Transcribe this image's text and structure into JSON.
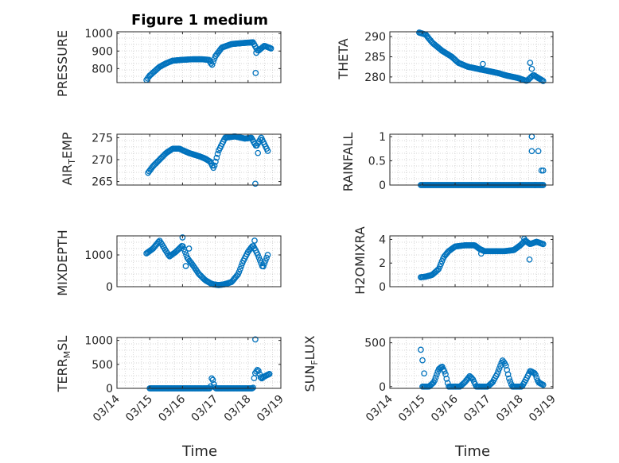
{
  "chart_data": [
    {
      "type": "scatter",
      "title": "Figure 1 medium",
      "ylabel": "PRESSURE",
      "ylim": [
        720,
        1010
      ],
      "yticks": [
        "800",
        "900",
        "1000"
      ],
      "xlim": [
        "03/14",
        "03/19"
      ],
      "grid": true,
      "keypoints": [
        [
          14.9,
          735
        ],
        [
          15.0,
          760
        ],
        [
          15.15,
          785
        ],
        [
          15.3,
          810
        ],
        [
          15.5,
          830
        ],
        [
          15.7,
          845
        ],
        [
          16.0,
          850
        ],
        [
          16.3,
          853
        ],
        [
          16.6,
          853
        ],
        [
          16.8,
          850
        ],
        [
          16.9,
          820
        ],
        [
          17.0,
          870
        ],
        [
          17.2,
          920
        ],
        [
          17.5,
          940
        ],
        [
          17.8,
          945
        ],
        [
          18.0,
          948
        ],
        [
          18.15,
          950
        ],
        [
          18.3,
          900
        ],
        [
          18.5,
          930
        ],
        [
          18.7,
          915
        ]
      ],
      "extra_points": [
        [
          18.23,
          775
        ],
        [
          18.25,
          890
        ]
      ]
    },
    {
      "type": "scatter",
      "ylabel": "THETA",
      "ylim": [
        278.6,
        291.2
      ],
      "yticks": [
        "280",
        "285",
        "290"
      ],
      "xlim": [
        "03/14",
        "03/19"
      ],
      "grid": true,
      "keypoints": [
        [
          14.9,
          291
        ],
        [
          15.1,
          290.5
        ],
        [
          15.3,
          288.5
        ],
        [
          15.6,
          286.5
        ],
        [
          15.9,
          285
        ],
        [
          16.1,
          283.5
        ],
        [
          16.4,
          282.5
        ],
        [
          16.7,
          282
        ],
        [
          17.0,
          281.5
        ],
        [
          17.3,
          281
        ],
        [
          17.6,
          280.3
        ],
        [
          17.9,
          279.8
        ],
        [
          18.2,
          279
        ],
        [
          18.4,
          280.5
        ],
        [
          18.7,
          279
        ]
      ],
      "extra_points": [
        [
          16.85,
          283.2
        ],
        [
          18.3,
          283.5
        ],
        [
          18.35,
          282
        ]
      ]
    },
    {
      "type": "scatter",
      "ylabel": "AIR_TEMP",
      "ylim": [
        264.2,
        275.8
      ],
      "yticks": [
        "265",
        "270",
        "275"
      ],
      "xlim": [
        "03/14",
        "03/19"
      ],
      "grid": true,
      "keypoints": [
        [
          14.95,
          267
        ],
        [
          15.1,
          268.5
        ],
        [
          15.3,
          270
        ],
        [
          15.5,
          271.5
        ],
        [
          15.7,
          272.5
        ],
        [
          15.9,
          272.5
        ],
        [
          16.2,
          271.5
        ],
        [
          16.5,
          270.8
        ],
        [
          16.7,
          270.2
        ],
        [
          16.85,
          269.5
        ],
        [
          16.95,
          268
        ],
        [
          17.1,
          272
        ],
        [
          17.3,
          275
        ],
        [
          17.6,
          275.3
        ],
        [
          17.9,
          274.8
        ],
        [
          18.1,
          275
        ],
        [
          18.25,
          273
        ],
        [
          18.4,
          275
        ],
        [
          18.6,
          272
        ]
      ],
      "extra_points": [
        [
          18.22,
          264.5
        ],
        [
          18.3,
          271.5
        ]
      ]
    },
    {
      "type": "scatter",
      "ylabel": "RAINFALL",
      "ylim": [
        0,
        1.05
      ],
      "yticks": [
        "0",
        "0.5",
        "1"
      ],
      "xlim": [
        "03/14",
        "03/19"
      ],
      "grid": true,
      "keypoints": [
        [
          14.95,
          0
        ],
        [
          18.7,
          0
        ]
      ],
      "extra_points": [
        [
          18.35,
          1
        ],
        [
          18.35,
          0.7
        ],
        [
          18.55,
          0.7
        ],
        [
          18.65,
          0.3
        ],
        [
          18.7,
          0.3
        ],
        [
          18.45,
          0
        ]
      ]
    },
    {
      "type": "scatter",
      "ylabel": "MIXDEPTH",
      "ylim": [
        0,
        1600
      ],
      "yticks": [
        "0",
        "1000"
      ],
      "xlim": [
        "03/14",
        "03/19"
      ],
      "grid": true,
      "keypoints": [
        [
          14.9,
          1050
        ],
        [
          15.1,
          1200
        ],
        [
          15.3,
          1450
        ],
        [
          15.45,
          1200
        ],
        [
          15.6,
          950
        ],
        [
          15.8,
          1100
        ],
        [
          16.0,
          1300
        ],
        [
          16.15,
          900
        ],
        [
          16.3,
          700
        ],
        [
          16.5,
          400
        ],
        [
          16.7,
          200
        ],
        [
          16.9,
          80
        ],
        [
          17.1,
          50
        ],
        [
          17.3,
          80
        ],
        [
          17.5,
          150
        ],
        [
          17.7,
          400
        ],
        [
          17.85,
          800
        ],
        [
          18.0,
          1100
        ],
        [
          18.15,
          1300
        ],
        [
          18.3,
          1000
        ],
        [
          18.45,
          600
        ],
        [
          18.6,
          1000
        ]
      ],
      "extra_points": [
        [
          16.0,
          1550
        ],
        [
          16.2,
          1200
        ],
        [
          16.1,
          650
        ],
        [
          18.2,
          1450
        ]
      ]
    },
    {
      "type": "scatter",
      "ylabel": "H2OMIXRA",
      "ylim": [
        0,
        4.3
      ],
      "yticks": [
        "0",
        "2",
        "4"
      ],
      "xlim": [
        "03/14",
        "03/19"
      ],
      "grid": true,
      "keypoints": [
        [
          14.95,
          0.8
        ],
        [
          15.1,
          0.85
        ],
        [
          15.3,
          1.0
        ],
        [
          15.5,
          1.5
        ],
        [
          15.65,
          2.5
        ],
        [
          15.8,
          3.0
        ],
        [
          16.0,
          3.4
        ],
        [
          16.3,
          3.5
        ],
        [
          16.6,
          3.5
        ],
        [
          16.75,
          3.2
        ],
        [
          16.9,
          3.0
        ],
        [
          17.2,
          3.0
        ],
        [
          17.5,
          3.0
        ],
        [
          17.8,
          3.1
        ],
        [
          18.0,
          3.5
        ],
        [
          18.15,
          3.9
        ],
        [
          18.3,
          3.6
        ],
        [
          18.5,
          3.8
        ],
        [
          18.7,
          3.6
        ]
      ],
      "extra_points": [
        [
          18.28,
          2.3
        ],
        [
          16.8,
          2.8
        ],
        [
          18.12,
          4.05
        ]
      ]
    },
    {
      "type": "scatter",
      "ylabel": "TERR_MSL",
      "ylim": [
        0,
        1060
      ],
      "yticks": [
        "0",
        "500",
        "1000"
      ],
      "xlim": [
        "03/14",
        "03/19"
      ],
      "grid": true,
      "keypoints": [
        [
          15.0,
          0
        ],
        [
          16.85,
          0
        ],
        [
          16.9,
          250
        ],
        [
          16.95,
          100
        ],
        [
          17.0,
          0
        ],
        [
          18.15,
          0
        ],
        [
          18.2,
          300
        ],
        [
          18.3,
          400
        ],
        [
          18.4,
          200
        ],
        [
          18.5,
          250
        ],
        [
          18.65,
          300
        ]
      ],
      "extra_points": [
        [
          18.22,
          1020
        ]
      ]
    },
    {
      "type": "scatter",
      "ylabel": "SUN_FLUX",
      "ylim": [
        -20,
        560
      ],
      "yticks": [
        "0",
        "500"
      ],
      "xlim": [
        "03/14",
        "03/19"
      ],
      "grid": true,
      "keypoints": [
        [
          15.0,
          0
        ],
        [
          15.2,
          0
        ],
        [
          15.35,
          50
        ],
        [
          15.5,
          200
        ],
        [
          15.6,
          230
        ],
        [
          15.7,
          150
        ],
        [
          15.8,
          0
        ],
        [
          16.15,
          0
        ],
        [
          16.3,
          50
        ],
        [
          16.45,
          120
        ],
        [
          16.55,
          80
        ],
        [
          16.65,
          0
        ],
        [
          17.0,
          0
        ],
        [
          17.15,
          50
        ],
        [
          17.3,
          150
        ],
        [
          17.45,
          300
        ],
        [
          17.55,
          250
        ],
        [
          17.65,
          100
        ],
        [
          17.75,
          0
        ],
        [
          18.05,
          0
        ],
        [
          18.2,
          100
        ],
        [
          18.3,
          180
        ],
        [
          18.45,
          150
        ],
        [
          18.55,
          50
        ],
        [
          18.7,
          20
        ]
      ],
      "extra_points": [
        [
          14.95,
          420
        ],
        [
          15.0,
          300
        ],
        [
          15.05,
          150
        ]
      ]
    }
  ],
  "axes": {
    "xticks": [
      "03/14",
      "03/15",
      "03/16",
      "03/17",
      "03/18",
      "03/19"
    ],
    "xlabel": "Time",
    "marker_color": "#0072BD"
  },
  "labels": {
    "title": "Figure 1 medium",
    "y": {
      "p1": "PRESSURE",
      "p2": "THETA",
      "p3_base": "AIR",
      "p3_sub": "T",
      "p3_rest": "EMP",
      "p4": "RAINFALL",
      "p5": "MIXDEPTH",
      "p6": "H2OMIXRA",
      "p7_base": "TERR",
      "p7_sub": "M",
      "p7_rest": "SL",
      "p8_base": "SUN",
      "p8_sub": "F",
      "p8_rest": "LUX"
    },
    "xlabel_left": "Time",
    "xlabel_right": "Time"
  }
}
